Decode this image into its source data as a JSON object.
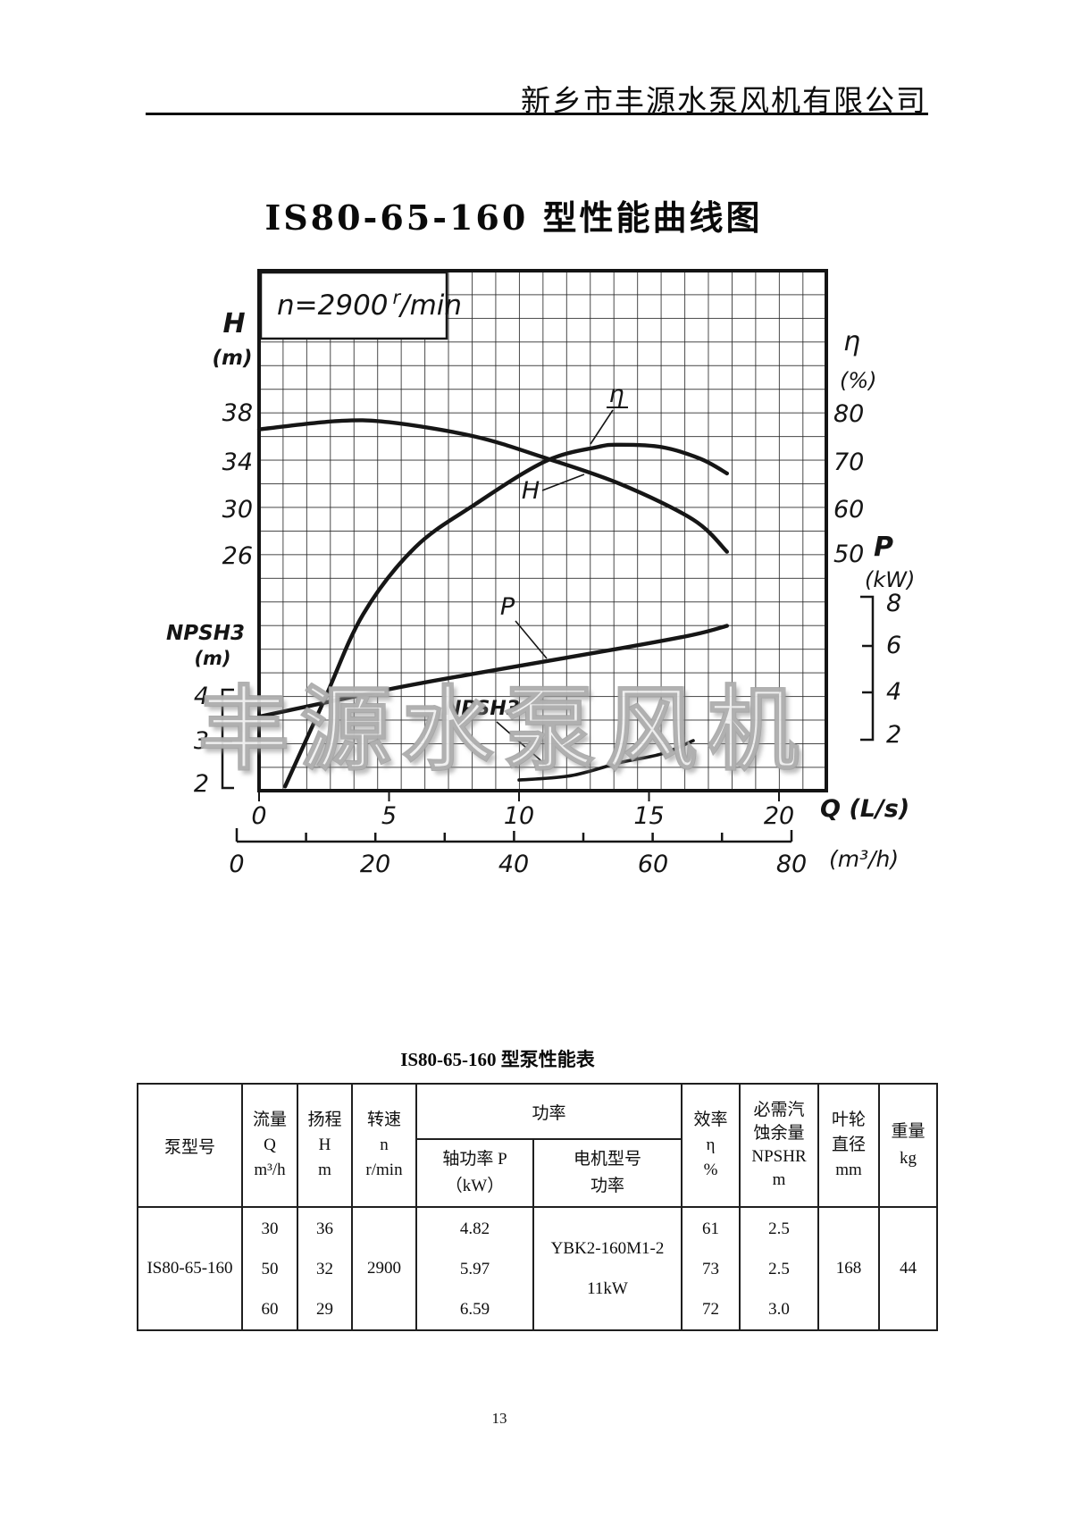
{
  "page": {
    "company": "新乡市丰源水泵风机有限公司",
    "page_number": "13"
  },
  "chart": {
    "title": "IS80-65-160 型性能曲线图",
    "speed": {
      "prefix": "n=2900",
      "sup": "r",
      "suffix": "/min"
    },
    "watermark": "丰源水泵风机",
    "axis_h": {
      "name": "H",
      "unit": "(m)",
      "ticks": [
        "38",
        "34",
        "30",
        "26"
      ]
    },
    "axis_eta": {
      "name": "η",
      "unit": "(%)",
      "ticks": [
        "80",
        "70",
        "60",
        "50"
      ]
    },
    "axis_p": {
      "name": "P",
      "unit": "(kW)",
      "ticks": [
        "8",
        "6",
        "4",
        "2"
      ]
    },
    "axis_npsh": {
      "name": "NPSH3",
      "unit": "(m)",
      "ticks": [
        "4",
        "3",
        "2"
      ]
    },
    "axis_q_ls": {
      "name": "Q (L/s)",
      "ticks": [
        "0",
        "5",
        "10",
        "15",
        "20"
      ]
    },
    "axis_q_m3h": {
      "name": "(m³/h)",
      "ticks": [
        "0",
        "20",
        "40",
        "60",
        "80"
      ]
    },
    "curve_labels": {
      "eta": "η",
      "h": "H",
      "p": "P",
      "npsh": "NPSH3"
    }
  },
  "chart_data": {
    "type": "line",
    "title": "IS80-65-160 型性能曲线图",
    "note": "n=2900 r/min",
    "x_axis": {
      "label": "Q",
      "units": [
        "L/s",
        "m³/h"
      ],
      "ticks_Ls": [
        0,
        5,
        10,
        15,
        20
      ],
      "ticks_m3h": [
        0,
        20,
        40,
        60,
        80
      ],
      "range_Ls": [
        0,
        21.8
      ]
    },
    "grid": true,
    "series": [
      {
        "key": "H",
        "name": "H",
        "unit": "m",
        "y_ticks": [
          38,
          34,
          30,
          26
        ],
        "points": [
          [
            0,
            36.6
          ],
          [
            3,
            37.3
          ],
          [
            5,
            37.2
          ],
          [
            8.3,
            36
          ],
          [
            11,
            34.2
          ],
          [
            13.9,
            32
          ],
          [
            16.7,
            29
          ],
          [
            18,
            26.3
          ]
        ]
      },
      {
        "key": "eta",
        "name": "η",
        "unit": "%",
        "y_ticks": [
          80,
          70,
          60,
          50
        ],
        "points": [
          [
            1,
            2
          ],
          [
            2.5,
            20
          ],
          [
            4,
            38
          ],
          [
            6,
            52
          ],
          [
            8.3,
            61
          ],
          [
            11,
            70
          ],
          [
            13,
            73
          ],
          [
            13.9,
            73.5
          ],
          [
            15.5,
            73
          ],
          [
            17,
            70.5
          ],
          [
            18,
            67.5
          ]
        ]
      },
      {
        "key": "P",
        "name": "P",
        "unit": "kW",
        "y_ticks": [
          8,
          6,
          4,
          2
        ],
        "points": [
          [
            0,
            2.85
          ],
          [
            5,
            4.1
          ],
          [
            8.3,
            4.82
          ],
          [
            13.9,
            5.97
          ],
          [
            16.7,
            6.59
          ],
          [
            18,
            7.0
          ]
        ]
      },
      {
        "key": "NPSH3",
        "name": "NPSH3",
        "unit": "m",
        "y_ticks": [
          4,
          3,
          2
        ],
        "points": [
          [
            10,
            2.1
          ],
          [
            12,
            2.2
          ],
          [
            13.9,
            2.5
          ],
          [
            15.5,
            2.7
          ],
          [
            16.7,
            3.0
          ]
        ]
      }
    ]
  },
  "table": {
    "title": "IS80-65-160 型泵性能表",
    "head": {
      "model": "泵型号",
      "flow": [
        "流量",
        "Q",
        "m³/h"
      ],
      "lift": [
        "扬程",
        "H",
        "m"
      ],
      "speed": [
        "转速",
        "n",
        "r/min"
      ],
      "power": "功率",
      "shaft_power": [
        "轴功率 P",
        "（kW）"
      ],
      "motor": [
        "电机型号",
        "功率"
      ],
      "efficiency": [
        "效率",
        "η",
        "%"
      ],
      "npshr": [
        "必需汽",
        "蚀余量",
        "NPSHR",
        "m"
      ],
      "impeller": [
        "叶轮",
        "直径",
        "mm"
      ],
      "weight": [
        "重量",
        "kg"
      ]
    },
    "row": {
      "model": "IS80-65-160",
      "flow": [
        "30",
        "50",
        "60"
      ],
      "lift": [
        "36",
        "32",
        "29"
      ],
      "speed": "2900",
      "shaft_power": [
        "4.82",
        "5.97",
        "6.59"
      ],
      "motor": [
        "YBK2-160M1-2",
        "11kW"
      ],
      "efficiency": [
        "61",
        "73",
        "72"
      ],
      "npshr": [
        "2.5",
        "2.5",
        "3.0"
      ],
      "impeller": "168",
      "weight": "44"
    }
  }
}
